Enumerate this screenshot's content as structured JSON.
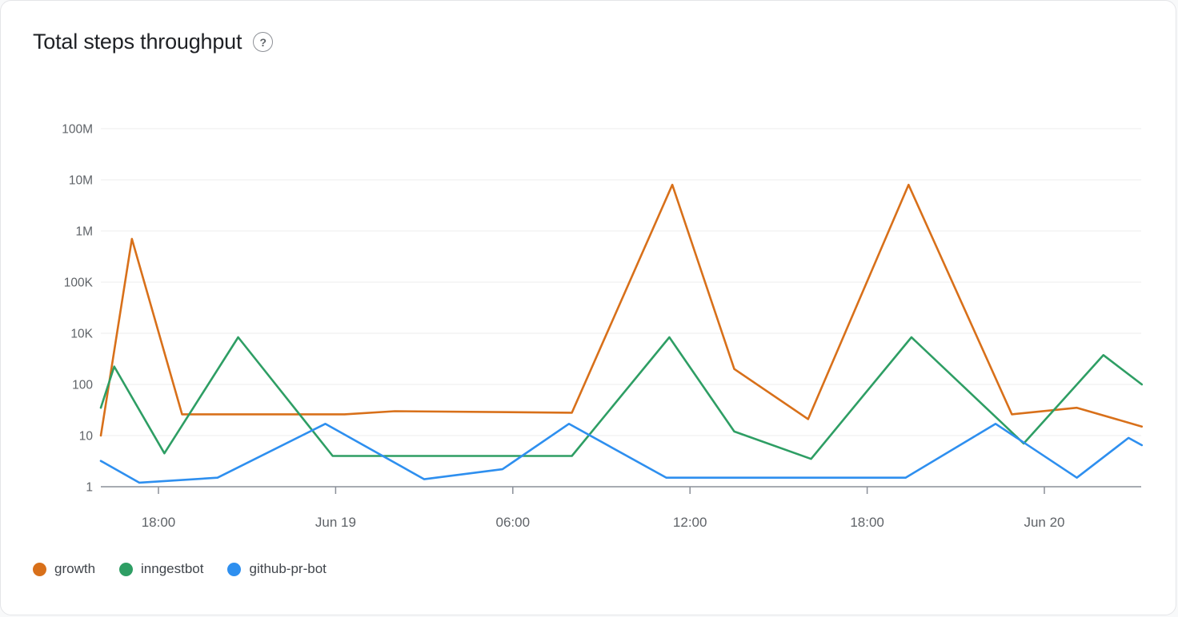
{
  "header": {
    "title": "Total steps throughput",
    "help_glyph": "?"
  },
  "chart_data": {
    "type": "line",
    "title": "Total steps throughput",
    "grid": "horizontal-only",
    "legend_position": "bottom-left",
    "y_axis": {
      "scale": "log",
      "ticks": [
        {
          "label": "1",
          "value": 1
        },
        {
          "label": "10",
          "value": 10
        },
        {
          "label": "100",
          "value": 100
        },
        {
          "label": "10K",
          "value": 10000
        },
        {
          "label": "100K",
          "value": 100000
        },
        {
          "label": "1M",
          "value": 1000000
        },
        {
          "label": "10M",
          "value": 10000000
        },
        {
          "label": "100M",
          "value": 100000000
        }
      ]
    },
    "x_axis": {
      "note": "h = hours relative to the first labeled tick (18:00)",
      "range_h": [
        -1.95,
        33.3
      ],
      "ticks": [
        {
          "label": "18:00",
          "h": 0
        },
        {
          "label": "Jun 19",
          "h": 6
        },
        {
          "label": "06:00",
          "h": 12
        },
        {
          "label": "12:00",
          "h": 18
        },
        {
          "label": "18:00",
          "h": 24
        },
        {
          "label": "Jun 20",
          "h": 30
        }
      ]
    },
    "series": [
      {
        "name": "growth",
        "color": "#D8701A",
        "points": [
          [
            -1.95,
            10
          ],
          [
            -0.9,
            700000
          ],
          [
            0.8,
            26
          ],
          [
            6.3,
            26
          ],
          [
            8.0,
            30
          ],
          [
            14.0,
            28
          ],
          [
            17.4,
            8000000
          ],
          [
            19.5,
            400
          ],
          [
            22.0,
            21
          ],
          [
            25.4,
            8000000
          ],
          [
            28.9,
            26
          ],
          [
            31.1,
            35
          ],
          [
            33.3,
            15
          ]
        ]
      },
      {
        "name": "inngestbot",
        "color": "#2E9E64",
        "points": [
          [
            -1.95,
            35
          ],
          [
            -1.5,
            500
          ],
          [
            0.2,
            4.5
          ],
          [
            2.7,
            7000
          ],
          [
            5.9,
            4
          ],
          [
            14.0,
            4
          ],
          [
            17.3,
            7000
          ],
          [
            19.5,
            12
          ],
          [
            22.1,
            3.5
          ],
          [
            25.5,
            7000
          ],
          [
            29.3,
            7
          ],
          [
            32.0,
            1400
          ],
          [
            33.3,
            100
          ]
        ]
      },
      {
        "name": "github-pr-bot",
        "color": "#2E8FEF",
        "points": [
          [
            -1.95,
            3.2
          ],
          [
            -0.65,
            1.2
          ],
          [
            2.0,
            1.5
          ],
          [
            5.65,
            17
          ],
          [
            9.0,
            1.4
          ],
          [
            11.65,
            2.2
          ],
          [
            13.9,
            17
          ],
          [
            17.2,
            1.5
          ],
          [
            25.3,
            1.5
          ],
          [
            28.35,
            17
          ],
          [
            31.1,
            1.5
          ],
          [
            32.85,
            9
          ],
          [
            33.3,
            6.5
          ]
        ]
      }
    ]
  }
}
